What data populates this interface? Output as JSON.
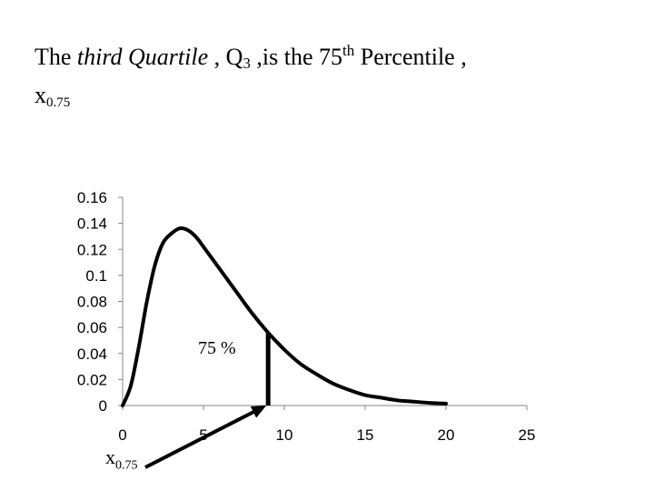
{
  "title": {
    "part1": "The ",
    "emphasis": "third Quartile",
    "part2": " , Q",
    "q_sub": "3",
    "part3": " ,is the 75",
    "th_sup": "th",
    "part4": " Percentile ,",
    "x_base": "x",
    "x_sub": "0.75"
  },
  "annotation": {
    "percent_text": "75 %",
    "quantile_base": "x",
    "quantile_sub": "0.75"
  },
  "chart_data": {
    "type": "line",
    "title": "",
    "xlabel": "",
    "ylabel": "",
    "xlim": [
      0,
      25
    ],
    "ylim": [
      0,
      0.16
    ],
    "x_ticks": [
      0,
      5,
      10,
      15,
      20,
      25
    ],
    "y_ticks": [
      "0",
      "0.02",
      "0.04",
      "0.06",
      "0.08",
      "0.1",
      "0.12",
      "0.14",
      "0.16"
    ],
    "grid": false,
    "legend": "none",
    "series": [
      {
        "x": [
          0,
          0.5,
          1,
          1.5,
          2,
          2.5,
          3,
          3.5,
          4,
          4.5,
          5,
          6,
          7,
          8,
          9,
          10,
          11,
          12,
          13,
          14,
          15,
          16,
          17,
          18,
          19,
          20
        ],
        "y": [
          0,
          0.015,
          0.045,
          0.08,
          0.108,
          0.125,
          0.132,
          0.136,
          0.135,
          0.13,
          0.122,
          0.105,
          0.088,
          0.071,
          0.056,
          0.043,
          0.032,
          0.024,
          0.017,
          0.012,
          0.008,
          0.006,
          0.004,
          0.003,
          0.002,
          0.0015
        ]
      }
    ],
    "marker": {
      "x": 9,
      "y": 0.056
    }
  }
}
